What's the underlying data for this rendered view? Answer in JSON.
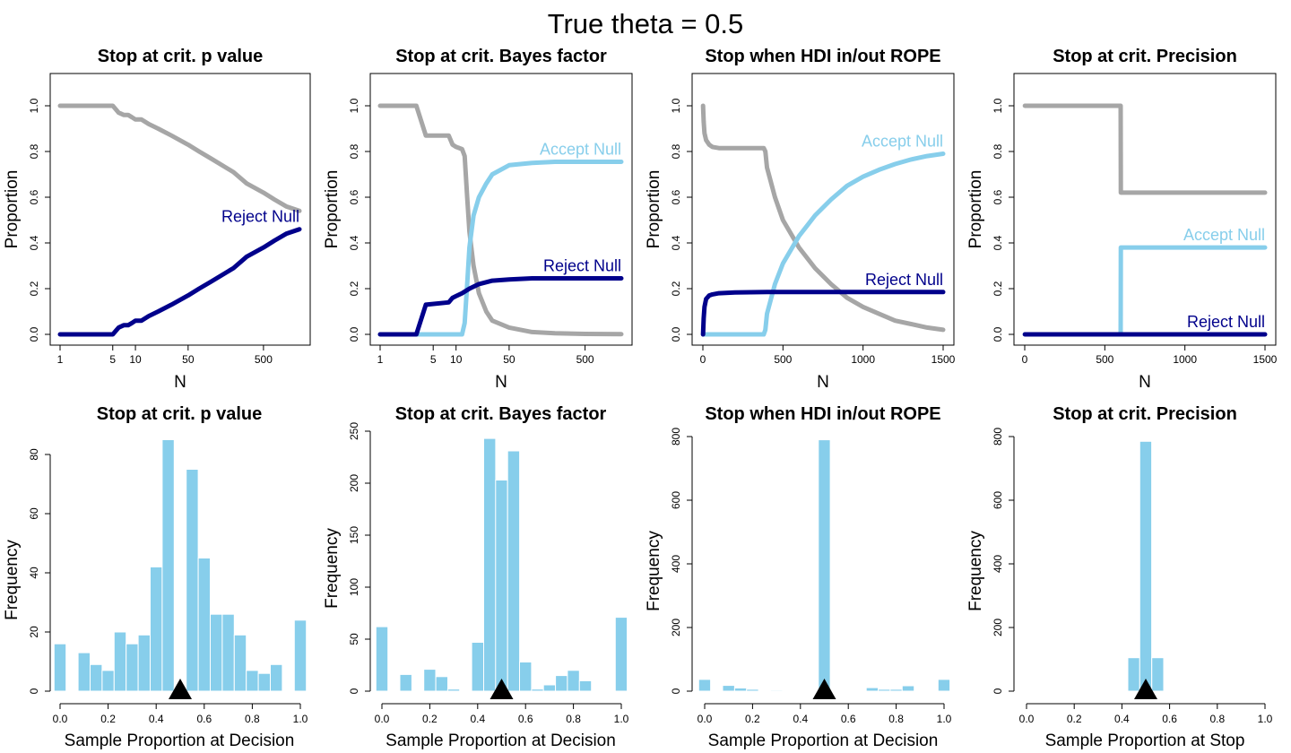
{
  "title": "True theta = 0.5",
  "colors": {
    "undecided": "#a6a6a6",
    "accept": "#87ceeb",
    "reject": "#00008b",
    "hist": "#87ceeb",
    "marker": "#000000"
  },
  "chart_data": [
    {
      "type": "line",
      "title": "Stop at crit. p value",
      "xlabel": "N",
      "ylabel": "Proportion",
      "xscale": "log",
      "xlim": [
        1,
        1500
      ],
      "ylim": [
        0,
        1.1
      ],
      "xticks": [
        1,
        5,
        10,
        50,
        500
      ],
      "yticks": [
        0,
        0.2,
        0.4,
        0.6,
        0.8,
        1.0
      ],
      "series": [
        {
          "role": "undecided",
          "x": [
            1,
            5,
            6,
            7,
            8,
            9,
            10,
            12,
            15,
            20,
            30,
            50,
            70,
            100,
            200,
            300,
            500,
            700,
            1000,
            1500
          ],
          "y": [
            1.0,
            1.0,
            0.97,
            0.96,
            0.96,
            0.95,
            0.94,
            0.94,
            0.92,
            0.9,
            0.87,
            0.83,
            0.8,
            0.77,
            0.71,
            0.66,
            0.62,
            0.59,
            0.56,
            0.54
          ]
        },
        {
          "role": "reject",
          "name": "Reject Null",
          "x": [
            1,
            5,
            6,
            7,
            8,
            9,
            10,
            12,
            15,
            20,
            30,
            50,
            70,
            100,
            200,
            300,
            500,
            700,
            1000,
            1500
          ],
          "y": [
            0.0,
            0.0,
            0.03,
            0.04,
            0.04,
            0.05,
            0.06,
            0.06,
            0.08,
            0.1,
            0.13,
            0.17,
            0.2,
            0.23,
            0.29,
            0.34,
            0.38,
            0.41,
            0.44,
            0.46
          ]
        }
      ]
    },
    {
      "type": "line",
      "title": "Stop at crit. Bayes factor",
      "xlabel": "N",
      "ylabel": "Proportion",
      "xscale": "log",
      "xlim": [
        1,
        1500
      ],
      "ylim": [
        0,
        1.1
      ],
      "xticks": [
        1,
        5,
        10,
        50,
        500
      ],
      "yticks": [
        0,
        0.2,
        0.4,
        0.6,
        0.8,
        1.0
      ],
      "series": [
        {
          "role": "undecided",
          "x": [
            1,
            3,
            4,
            8,
            9,
            10,
            12,
            13,
            14,
            15,
            17,
            20,
            25,
            30,
            50,
            100,
            200,
            500,
            1500
          ],
          "y": [
            1.0,
            1.0,
            0.87,
            0.87,
            0.83,
            0.82,
            0.81,
            0.78,
            0.6,
            0.45,
            0.3,
            0.18,
            0.1,
            0.06,
            0.03,
            0.01,
            0.005,
            0.002,
            0.001
          ]
        },
        {
          "role": "accept",
          "name": "Accept Null",
          "x": [
            1,
            12,
            13,
            14,
            15,
            17,
            20,
            25,
            30,
            50,
            100,
            200,
            500,
            1500
          ],
          "y": [
            0.0,
            0.0,
            0.05,
            0.22,
            0.38,
            0.52,
            0.6,
            0.66,
            0.7,
            0.74,
            0.75,
            0.755,
            0.755,
            0.755
          ]
        },
        {
          "role": "reject",
          "name": "Reject Null",
          "x": [
            1,
            3,
            4,
            8,
            9,
            12,
            15,
            20,
            30,
            50,
            100,
            1500
          ],
          "y": [
            0.0,
            0.0,
            0.13,
            0.14,
            0.16,
            0.18,
            0.2,
            0.22,
            0.235,
            0.24,
            0.245,
            0.245
          ]
        }
      ]
    },
    {
      "type": "line",
      "title": "Stop when HDI in/out ROPE",
      "xlabel": "N",
      "ylabel": "Proportion",
      "xscale": "linear",
      "xlim": [
        0,
        1500
      ],
      "ylim": [
        0,
        1.1
      ],
      "xticks": [
        0,
        500,
        1000,
        1500
      ],
      "yticks": [
        0,
        0.2,
        0.4,
        0.6,
        0.8,
        1.0
      ],
      "series": [
        {
          "role": "undecided",
          "x": [
            1,
            5,
            10,
            20,
            40,
            60,
            100,
            200,
            300,
            380,
            390,
            400,
            450,
            500,
            600,
            700,
            800,
            900,
            1000,
            1100,
            1200,
            1300,
            1400,
            1500
          ],
          "y": [
            1.0,
            0.93,
            0.88,
            0.85,
            0.83,
            0.82,
            0.815,
            0.815,
            0.815,
            0.815,
            0.8,
            0.73,
            0.6,
            0.5,
            0.38,
            0.29,
            0.22,
            0.16,
            0.12,
            0.09,
            0.06,
            0.045,
            0.03,
            0.02
          ]
        },
        {
          "role": "accept",
          "name": "Accept Null",
          "x": [
            1,
            380,
            390,
            400,
            450,
            500,
            600,
            700,
            800,
            900,
            1000,
            1100,
            1200,
            1300,
            1400,
            1500
          ],
          "y": [
            0.0,
            0.0,
            0.02,
            0.09,
            0.22,
            0.31,
            0.43,
            0.52,
            0.59,
            0.65,
            0.69,
            0.72,
            0.745,
            0.765,
            0.78,
            0.79
          ]
        },
        {
          "role": "reject",
          "name": "Reject Null",
          "x": [
            1,
            5,
            10,
            20,
            40,
            60,
            100,
            200,
            400,
            1500
          ],
          "y": [
            0.0,
            0.07,
            0.12,
            0.155,
            0.17,
            0.175,
            0.18,
            0.183,
            0.185,
            0.185
          ]
        }
      ]
    },
    {
      "type": "line",
      "title": "Stop at crit. Precision",
      "xlabel": "N",
      "ylabel": "Proportion",
      "xscale": "linear",
      "xlim": [
        0,
        1500
      ],
      "ylim": [
        0,
        1.1
      ],
      "xticks": [
        0,
        500,
        1000,
        1500
      ],
      "yticks": [
        0,
        0.2,
        0.4,
        0.6,
        0.8,
        1.0
      ],
      "series": [
        {
          "role": "undecided",
          "x": [
            1,
            599,
            600,
            1500
          ],
          "y": [
            1.0,
            1.0,
            0.62,
            0.62
          ]
        },
        {
          "role": "accept",
          "name": "Accept Null",
          "x": [
            1,
            599,
            600,
            1500
          ],
          "y": [
            0.0,
            0.0,
            0.38,
            0.38
          ]
        },
        {
          "role": "reject",
          "name": "Reject Null",
          "x": [
            1,
            1500
          ],
          "y": [
            0.0,
            0.0
          ]
        }
      ]
    },
    {
      "type": "bar",
      "title": "Stop at crit. p value",
      "xlabel": "Sample Proportion at Decision",
      "ylabel": "Frequency",
      "xlim": [
        0,
        1
      ],
      "ylim": [
        0,
        85
      ],
      "xticks": [
        0.0,
        0.2,
        0.4,
        0.6,
        0.8,
        1.0
      ],
      "yticks": [
        0,
        20,
        40,
        60,
        80
      ],
      "bars": [
        {
          "x0": -0.025,
          "x1": 0.025,
          "count": 16
        },
        {
          "x0": 0.075,
          "x1": 0.125,
          "count": 13
        },
        {
          "x0": 0.125,
          "x1": 0.175,
          "count": 9
        },
        {
          "x0": 0.175,
          "x1": 0.225,
          "count": 7
        },
        {
          "x0": 0.225,
          "x1": 0.275,
          "count": 20
        },
        {
          "x0": 0.275,
          "x1": 0.325,
          "count": 16
        },
        {
          "x0": 0.325,
          "x1": 0.375,
          "count": 19
        },
        {
          "x0": 0.375,
          "x1": 0.425,
          "count": 42
        },
        {
          "x0": 0.425,
          "x1": 0.475,
          "count": 85
        },
        {
          "x0": 0.475,
          "x1": 0.525,
          "count": 1
        },
        {
          "x0": 0.525,
          "x1": 0.575,
          "count": 75
        },
        {
          "x0": 0.575,
          "x1": 0.625,
          "count": 45
        },
        {
          "x0": 0.625,
          "x1": 0.675,
          "count": 26
        },
        {
          "x0": 0.675,
          "x1": 0.725,
          "count": 26
        },
        {
          "x0": 0.725,
          "x1": 0.775,
          "count": 19
        },
        {
          "x0": 0.775,
          "x1": 0.825,
          "count": 7
        },
        {
          "x0": 0.825,
          "x1": 0.875,
          "count": 6
        },
        {
          "x0": 0.875,
          "x1": 0.925,
          "count": 9
        },
        {
          "x0": 0.975,
          "x1": 1.025,
          "count": 24
        }
      ],
      "marker": 0.5
    },
    {
      "type": "bar",
      "title": "Stop at crit. Bayes factor",
      "xlabel": "Sample Proportion at Decision",
      "ylabel": "Frequency",
      "xlim": [
        0,
        1
      ],
      "ylim": [
        0,
        250
      ],
      "xticks": [
        0.0,
        0.2,
        0.4,
        0.6,
        0.8,
        1.0
      ],
      "yticks": [
        0,
        50,
        100,
        150,
        200,
        250
      ],
      "bars": [
        {
          "x0": -0.025,
          "x1": 0.025,
          "count": 62
        },
        {
          "x0": 0.075,
          "x1": 0.125,
          "count": 16
        },
        {
          "x0": 0.175,
          "x1": 0.225,
          "count": 21
        },
        {
          "x0": 0.225,
          "x1": 0.275,
          "count": 14
        },
        {
          "x0": 0.275,
          "x1": 0.325,
          "count": 2
        },
        {
          "x0": 0.375,
          "x1": 0.425,
          "count": 47
        },
        {
          "x0": 0.425,
          "x1": 0.475,
          "count": 243
        },
        {
          "x0": 0.475,
          "x1": 0.525,
          "count": 203
        },
        {
          "x0": 0.525,
          "x1": 0.575,
          "count": 231
        },
        {
          "x0": 0.575,
          "x1": 0.625,
          "count": 28
        },
        {
          "x0": 0.625,
          "x1": 0.675,
          "count": 2
        },
        {
          "x0": 0.675,
          "x1": 0.725,
          "count": 6
        },
        {
          "x0": 0.725,
          "x1": 0.775,
          "count": 15
        },
        {
          "x0": 0.775,
          "x1": 0.825,
          "count": 20
        },
        {
          "x0": 0.825,
          "x1": 0.875,
          "count": 10
        },
        {
          "x0": 0.975,
          "x1": 1.025,
          "count": 71
        }
      ],
      "marker": 0.5
    },
    {
      "type": "bar",
      "title": "Stop when HDI in/out ROPE",
      "xlabel": "Sample Proportion at Decision",
      "ylabel": "Frequency",
      "xlim": [
        0,
        1
      ],
      "ylim": [
        0,
        800
      ],
      "xticks": [
        0.0,
        0.2,
        0.4,
        0.6,
        0.8,
        1.0
      ],
      "yticks": [
        0,
        200,
        400,
        600,
        800
      ],
      "bars": [
        {
          "x0": -0.025,
          "x1": 0.025,
          "count": 37
        },
        {
          "x0": 0.075,
          "x1": 0.125,
          "count": 18
        },
        {
          "x0": 0.125,
          "x1": 0.175,
          "count": 10
        },
        {
          "x0": 0.175,
          "x1": 0.225,
          "count": 6
        },
        {
          "x0": 0.275,
          "x1": 0.325,
          "count": 3
        },
        {
          "x0": 0.475,
          "x1": 0.525,
          "count": 790
        },
        {
          "x0": 0.675,
          "x1": 0.725,
          "count": 11
        },
        {
          "x0": 0.725,
          "x1": 0.775,
          "count": 6
        },
        {
          "x0": 0.775,
          "x1": 0.825,
          "count": 6
        },
        {
          "x0": 0.825,
          "x1": 0.875,
          "count": 17
        },
        {
          "x0": 0.975,
          "x1": 1.025,
          "count": 37
        }
      ],
      "marker": 0.5
    },
    {
      "type": "bar",
      "title": "Stop at crit. Precision",
      "xlabel": "Sample Proportion at Stop",
      "ylabel": "Frequency",
      "xlim": [
        0,
        1
      ],
      "ylim": [
        0,
        800
      ],
      "xticks": [
        0.0,
        0.2,
        0.4,
        0.6,
        0.8,
        1.0
      ],
      "yticks": [
        0,
        200,
        400,
        600,
        800
      ],
      "bars": [
        {
          "x0": 0.425,
          "x1": 0.475,
          "count": 105
        },
        {
          "x0": 0.475,
          "x1": 0.525,
          "count": 785
        },
        {
          "x0": 0.525,
          "x1": 0.575,
          "count": 105
        }
      ],
      "marker": 0.5
    }
  ]
}
